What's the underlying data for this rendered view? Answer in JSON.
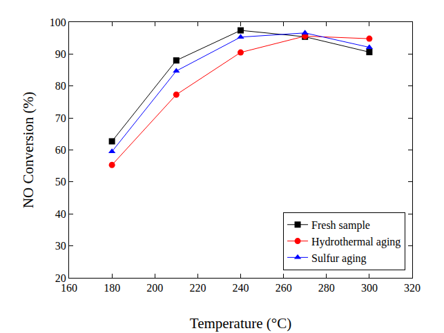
{
  "chart_data": {
    "type": "line",
    "x_label": "Temperature (°C)",
    "y_label": "NO Conversion (%)",
    "x": [
      180,
      210,
      240,
      270,
      300
    ],
    "series": [
      {
        "name": "Fresh sample",
        "color": "#000000",
        "marker": "square",
        "values": [
          62.7,
          88.0,
          97.4,
          95.4,
          90.6
        ]
      },
      {
        "name": "Hydrothermal aging",
        "color": "#ff0000",
        "marker": "circle",
        "values": [
          55.3,
          77.3,
          90.5,
          95.6,
          94.8
        ]
      },
      {
        "name": "Sulfur aging",
        "color": "#0000ff",
        "marker": "triangle",
        "values": [
          59.5,
          84.7,
          95.3,
          96.6,
          92.1
        ]
      }
    ],
    "xlim": [
      160,
      320
    ],
    "xticks": [
      160,
      180,
      200,
      220,
      240,
      260,
      280,
      300,
      320
    ],
    "ylim": [
      20,
      100
    ],
    "yticks": [
      20,
      30,
      40,
      50,
      60,
      70,
      80,
      90,
      100
    ],
    "grid": false,
    "legend": "lower right"
  }
}
